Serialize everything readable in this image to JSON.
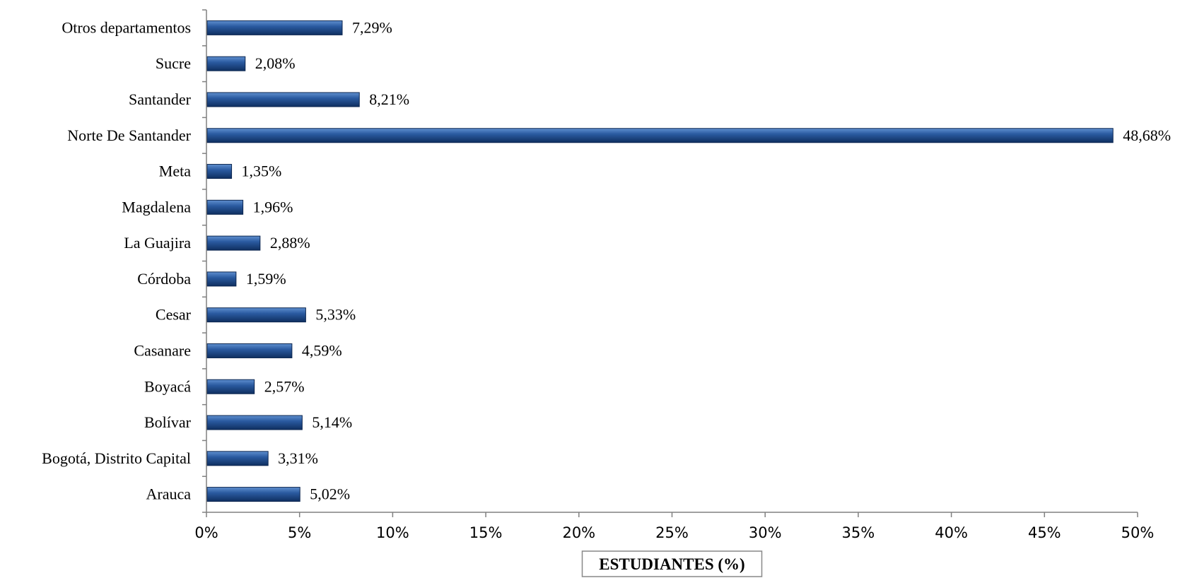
{
  "chart_data": {
    "type": "bar",
    "orientation": "horizontal",
    "categories": [
      "Arauca",
      "Bogotá, Distrito Capital",
      "Bolívar",
      "Boyacá",
      "Casanare",
      "Cesar",
      "Córdoba",
      "La Guajira",
      "Magdalena",
      "Meta",
      "Norte De Santander",
      "Santander",
      "Sucre",
      "Otros departamentos"
    ],
    "values": [
      5.02,
      3.31,
      5.14,
      2.57,
      4.59,
      5.33,
      1.59,
      2.88,
      1.96,
      1.35,
      48.68,
      8.21,
      2.08,
      7.29
    ],
    "data_labels": [
      "5,02%",
      "3,31%",
      "5,14%",
      "2,57%",
      "4,59%",
      "5,33%",
      "1,59%",
      "2,88%",
      "1,96%",
      "1,35%",
      "48,68%",
      "8,21%",
      "2,08%",
      "7,29%"
    ],
    "x_ticks": [
      "0%",
      "5%",
      "10%",
      "15%",
      "20%",
      "25%",
      "30%",
      "35%",
      "40%",
      "45%",
      "50%"
    ],
    "xlim": [
      0,
      50
    ],
    "xlabel": "ESTUDIANTES  (%)",
    "ylabel": "",
    "title": "",
    "grid": false,
    "legend": "none",
    "bar_color": "#1f4e8c"
  }
}
